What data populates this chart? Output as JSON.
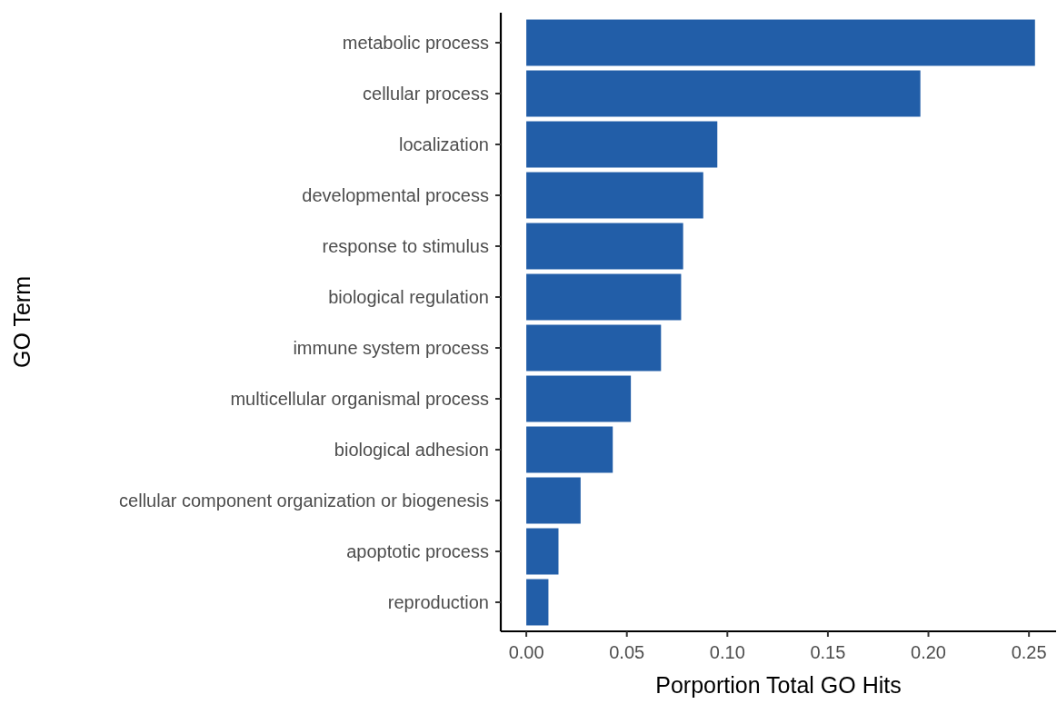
{
  "chart_data": {
    "type": "bar",
    "orientation": "horizontal",
    "xlabel": "Porportion Total GO Hits",
    "ylabel": "GO Term",
    "categories": [
      "metabolic process",
      "cellular process",
      "localization",
      "developmental process",
      "response to stimulus",
      "biological regulation",
      "immune system process",
      "multicellular organismal process",
      "biological adhesion",
      "cellular component organization or biogenesis",
      "apoptotic process",
      "reproduction"
    ],
    "values": [
      0.253,
      0.196,
      0.095,
      0.088,
      0.078,
      0.077,
      0.067,
      0.052,
      0.043,
      0.027,
      0.016,
      0.011
    ],
    "color": "#225ea8",
    "xlim": [
      -0.0127,
      0.2635
    ],
    "xticks": [
      {
        "value": 0,
        "label": "0.00"
      },
      {
        "value": 0.05,
        "label": "0.05"
      },
      {
        "value": 0.1,
        "label": "0.10"
      },
      {
        "value": 0.15,
        "label": "0.15"
      },
      {
        "value": 0.2,
        "label": "0.20"
      },
      {
        "value": 0.25,
        "label": "0.25"
      }
    ],
    "grid": false
  }
}
